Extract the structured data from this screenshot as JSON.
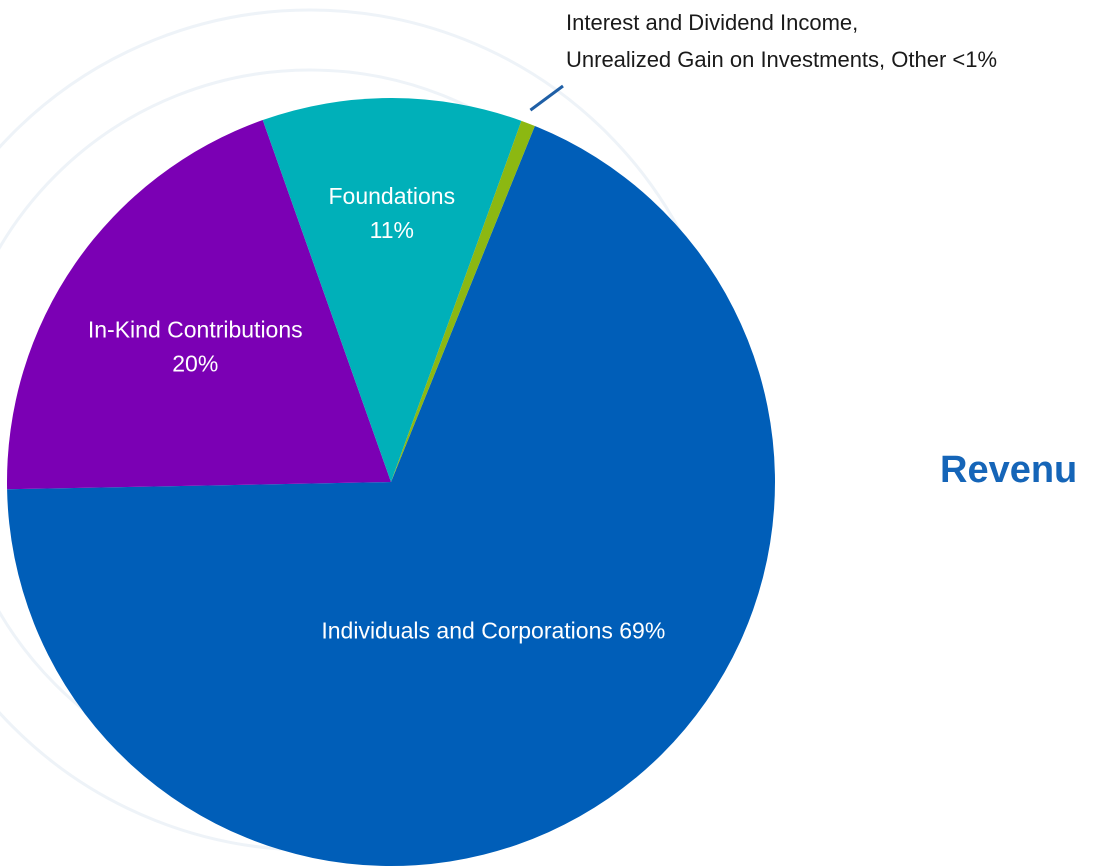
{
  "chart_data": {
    "type": "pie",
    "title": "Revenu",
    "slices": [
      {
        "label_lines": [
          "Individuals and Corporations 69%"
        ],
        "value": 69,
        "color": "#005eb8"
      },
      {
        "label_lines": [
          "In-Kind Contributions",
          "20%"
        ],
        "value": 20,
        "color": "#7b00b4"
      },
      {
        "label_lines": [
          "Foundations",
          "11%"
        ],
        "value": 11,
        "color": "#00b0b9"
      },
      {
        "label_lines": [
          "Interest and Dividend Income,",
          "Unrealized Gain on Investments, Other <1%"
        ],
        "value": 0.6,
        "color": "#8cb812"
      }
    ],
    "leader_color": "#1f5fa6"
  }
}
